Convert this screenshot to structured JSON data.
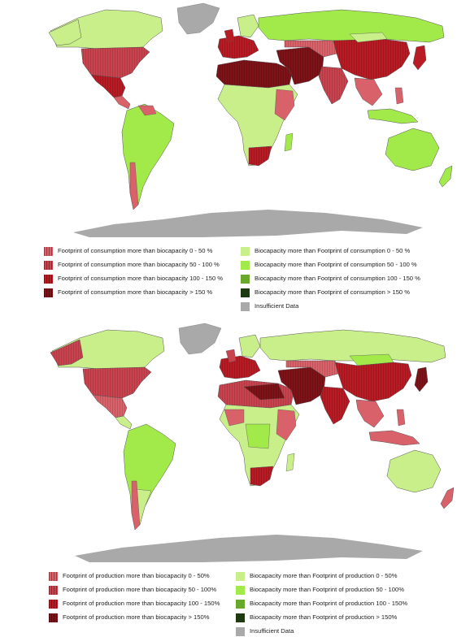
{
  "colors": {
    "red1": "#d9626a",
    "red2": "#c9434f",
    "red3": "#b81b24",
    "red4": "#7d1218",
    "green1": "#c9ef8a",
    "green2": "#a2ea4a",
    "green3": "#6aa82c",
    "green4": "#1e3a10",
    "gray": "#a9a9a9",
    "border": "#555555"
  },
  "maps": [
    {
      "name": "consumption",
      "legend": [
        {
          "label": "Footprint of consumption more than biocapacity 0 - 50 %",
          "color": "red1",
          "hatch": true
        },
        {
          "label": "Footprint of consumption more than biocapacity  50 - 100 %",
          "color": "red2",
          "hatch": true
        },
        {
          "label": "Footprint of consumption more than biocapacity 100 - 150 %",
          "color": "red3",
          "hatch": true
        },
        {
          "label": "Footprint of consumption more than biocapacity > 150 %",
          "color": "red4",
          "hatch": true
        },
        {
          "label": "Biocapacity more than Footprint of consumption 0 - 50 %",
          "color": "green1",
          "hatch": false
        },
        {
          "label": "Biocapacity more than Footprint of consumption 50 - 100 %",
          "color": "green2",
          "hatch": false
        },
        {
          "label": "Biocapacity more than Footprint of consumption 100 - 150 %",
          "color": "green3",
          "hatch": false
        },
        {
          "label": "Biocapacity more than Footprint of consumption > 150 %",
          "color": "green4",
          "hatch": false
        },
        {
          "label": "Insufficient Data",
          "color": "gray",
          "hatch": false
        }
      ]
    },
    {
      "name": "production",
      "legend": [
        {
          "label": "Footprint of production more than biocapacity 0 - 50%",
          "color": "red1",
          "hatch": true
        },
        {
          "label": "Footprint of production more than biocapacity 50 - 100%",
          "color": "red2",
          "hatch": true
        },
        {
          "label": "Footprint of production more than biocapacity 100 - 150%",
          "color": "red3",
          "hatch": true
        },
        {
          "label": "Footprint of production more than biocapacity > 150%",
          "color": "red4",
          "hatch": true
        },
        {
          "label": "Biocapacity more than Footprint of production 0 - 50%",
          "color": "green1",
          "hatch": false
        },
        {
          "label": "Biocapacity more than Footprint of production 50 - 100%",
          "color": "green2",
          "hatch": false
        },
        {
          "label": "Biocapacity more than Footprint of production 100 - 150%",
          "color": "green3",
          "hatch": false
        },
        {
          "label": "Biocapacity more than Footprint of production > 150%",
          "color": "green4",
          "hatch": false
        },
        {
          "label": "Insufficient Data",
          "color": "gray",
          "hatch": false
        }
      ]
    }
  ]
}
